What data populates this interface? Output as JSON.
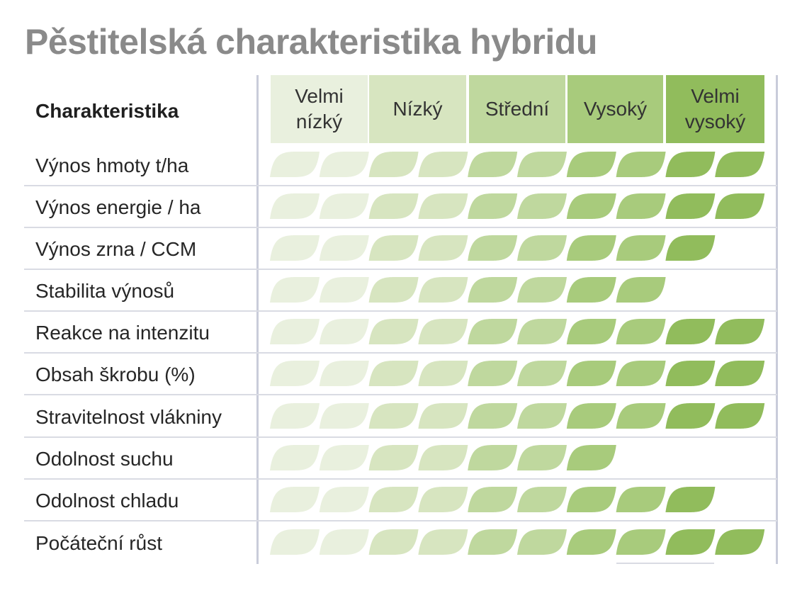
{
  "chart_data": {
    "type": "table",
    "title": "Pěstitelská charakteristika hybridu",
    "column_header": "Charakteristika",
    "levels": [
      "Velmi nízký",
      "Nízký",
      "Střední",
      "Vysoký",
      "Velmi vysoký"
    ],
    "max_score": 10,
    "rows": [
      {
        "label": "Výnos hmoty t/ha",
        "value": 10
      },
      {
        "label": "Výnos energie / ha",
        "value": 10
      },
      {
        "label": "Výnos zrna / CCM",
        "value": 9
      },
      {
        "label": "Stabilita výnosů",
        "value": 8
      },
      {
        "label": "Reakce na intenzitu",
        "value": 10
      },
      {
        "label": "Obsah škrobu (%)",
        "value": 10
      },
      {
        "label": "Stravitelnost vlákniny",
        "value": 10
      },
      {
        "label": "Odolnost suchu",
        "value": 7
      },
      {
        "label": "Odolnost chladu",
        "value": 9
      },
      {
        "label": "Počáteční růst",
        "value": 10
      }
    ],
    "level_colors": [
      "#e9f0de",
      "#d7e5c0",
      "#bfd89e",
      "#a8cb7c",
      "#91bc5c"
    ]
  }
}
